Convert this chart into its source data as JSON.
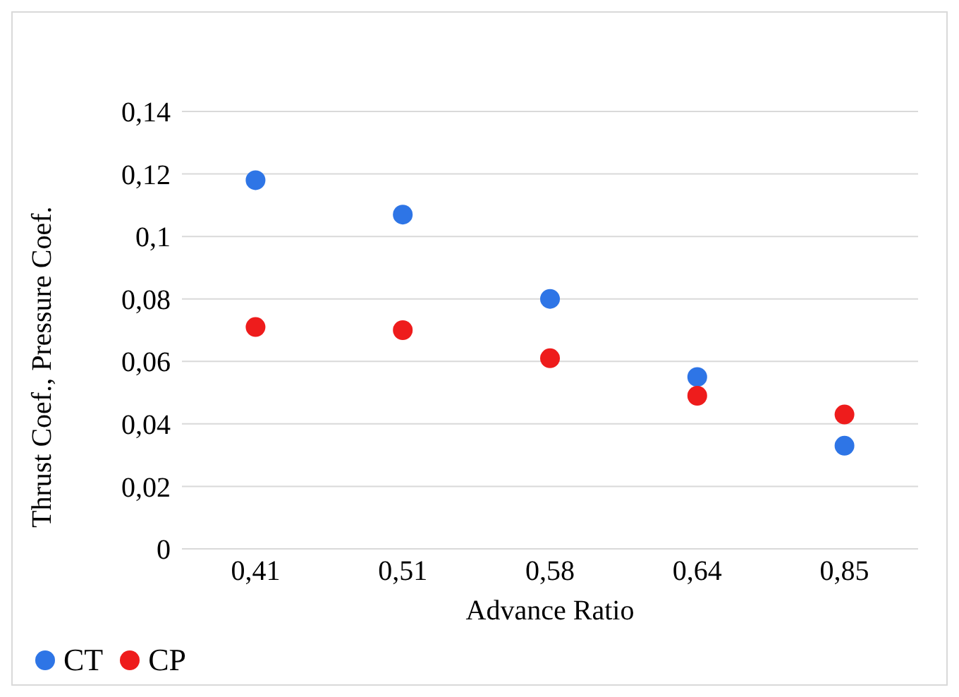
{
  "chart_data": {
    "type": "scatter",
    "xlabel": "Advance Ratio",
    "ylabel": "Thrust Coef., Pressure Coef.",
    "categories": [
      "0,41",
      "0,51",
      "0,58",
      "0,64",
      "0,85"
    ],
    "series": [
      {
        "name": "CT",
        "color": "#2e75e6",
        "values": [
          0.118,
          0.107,
          0.08,
          0.055,
          0.033
        ]
      },
      {
        "name": "CP",
        "color": "#ee1c1c",
        "values": [
          0.071,
          0.07,
          0.061,
          0.049,
          0.043
        ]
      }
    ],
    "ylim": [
      0,
      0.14
    ],
    "yticks": [
      {
        "value": 0,
        "label": "0"
      },
      {
        "value": 0.02,
        "label": "0,02"
      },
      {
        "value": 0.04,
        "label": "0,04"
      },
      {
        "value": 0.06,
        "label": "0,06"
      },
      {
        "value": 0.08,
        "label": "0,08"
      },
      {
        "value": 0.1,
        "label": "0,1"
      },
      {
        "value": 0.12,
        "label": "0,12"
      },
      {
        "value": 0.14,
        "label": "0,14"
      }
    ],
    "grid": "y",
    "legend": "bottom left",
    "marker": "circle"
  }
}
